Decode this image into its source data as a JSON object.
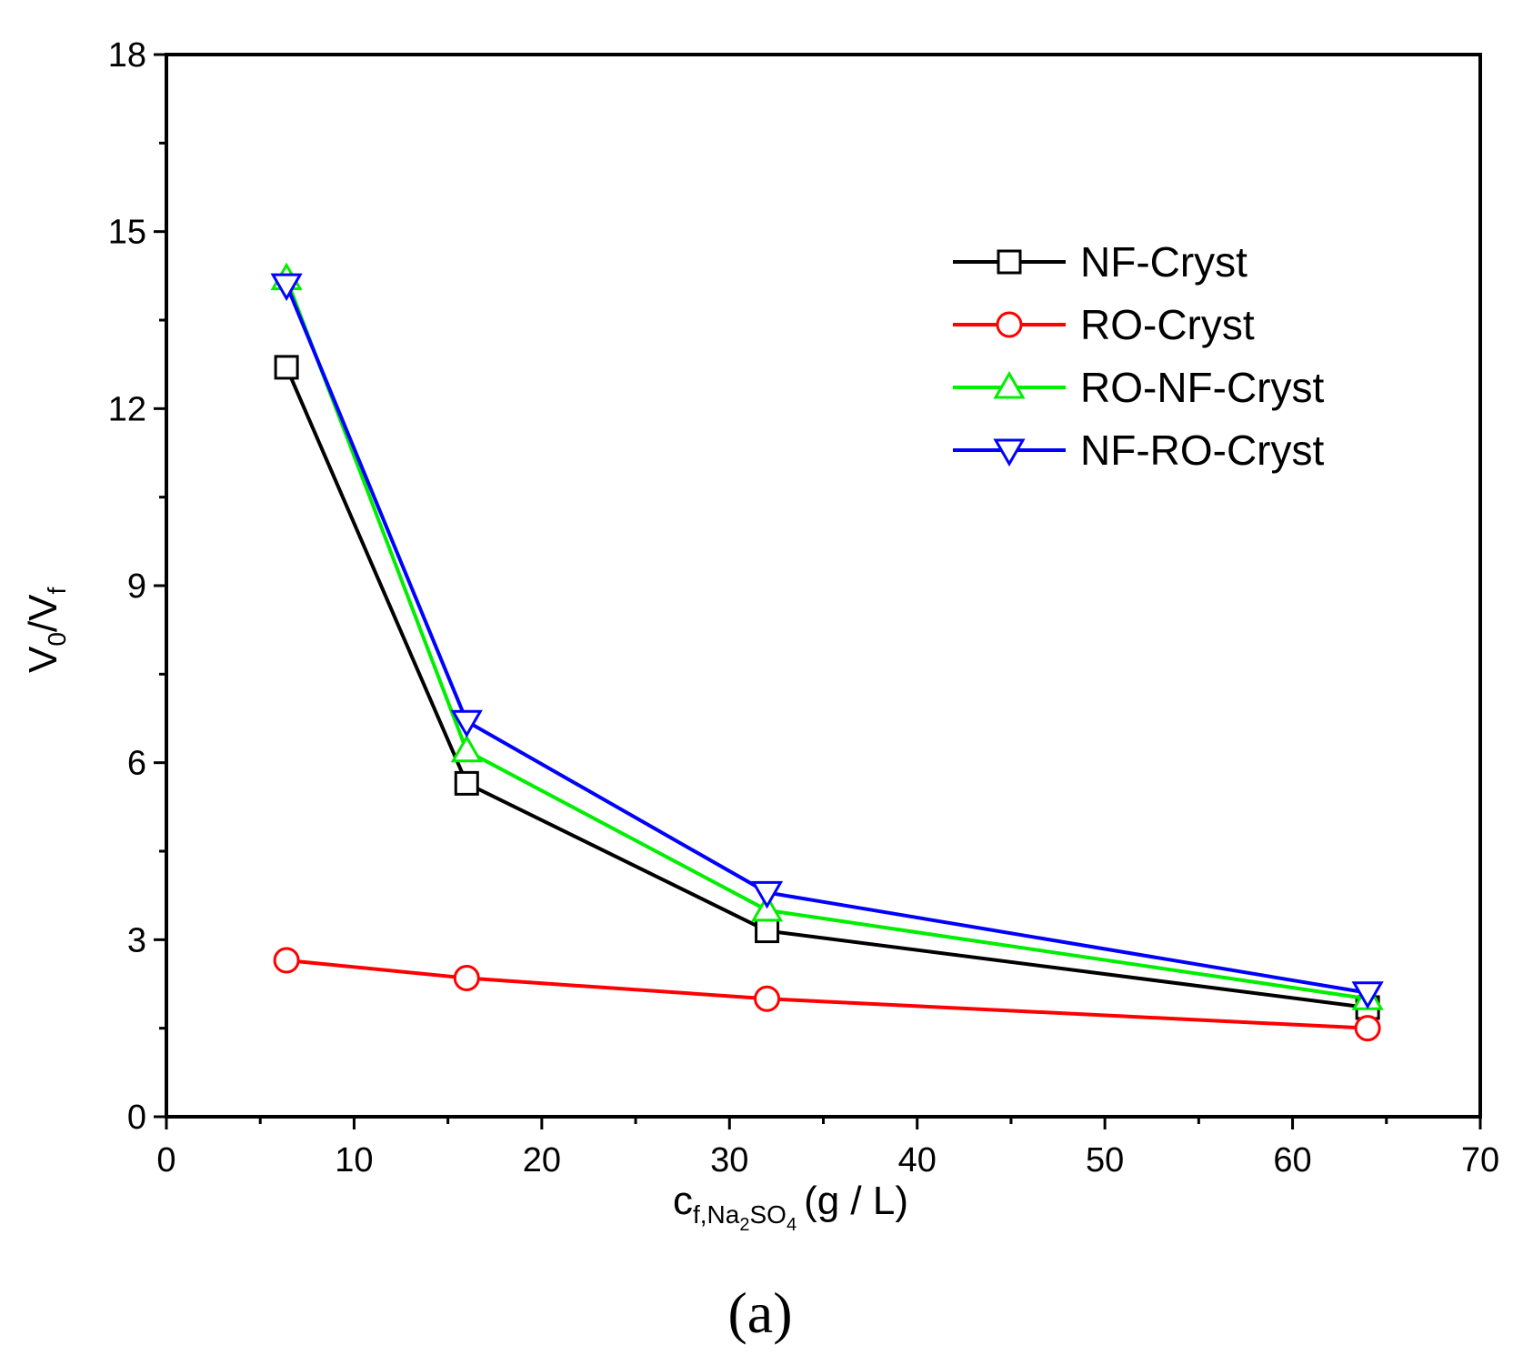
{
  "colors": {
    "axis": "#000000",
    "background": "#ffffff"
  },
  "chart_data": {
    "type": "line",
    "title": "",
    "panel_label": "(a)",
    "xlabel": {
      "main": "c",
      "sub": "f,Na",
      "sub2": "2",
      "sub3": "SO",
      "sub4": "4",
      "unit": "(g / L)"
    },
    "ylabel": {
      "v0": "V",
      "sub0": "0",
      "slash": "/V",
      "subf": "f"
    },
    "xlim": [
      0,
      70
    ],
    "ylim": [
      0,
      18
    ],
    "xticks": [
      "0",
      "10",
      "20",
      "30",
      "40",
      "50",
      "60",
      "70"
    ],
    "yticks": [
      "0",
      "3",
      "6",
      "9",
      "12",
      "15",
      "18"
    ],
    "x": [
      6.4,
      16,
      32,
      64
    ],
    "legend_position": "upper-right",
    "series": [
      {
        "name": "NF-Cryst",
        "color": "#000000",
        "marker": "square",
        "values": [
          12.7,
          5.65,
          3.15,
          1.85
        ]
      },
      {
        "name": "RO-Cryst",
        "color": "#ff0000",
        "marker": "circle",
        "values": [
          2.65,
          2.35,
          2.0,
          1.5
        ]
      },
      {
        "name": "RO-NF-Cryst",
        "color": "#00ee00",
        "marker": "triangle-up",
        "values": [
          14.2,
          6.2,
          3.5,
          2.0
        ]
      },
      {
        "name": "NF-RO-Cryst",
        "color": "#0000ff",
        "marker": "triangle-down",
        "values": [
          14.1,
          6.7,
          3.8,
          2.1
        ]
      }
    ]
  }
}
